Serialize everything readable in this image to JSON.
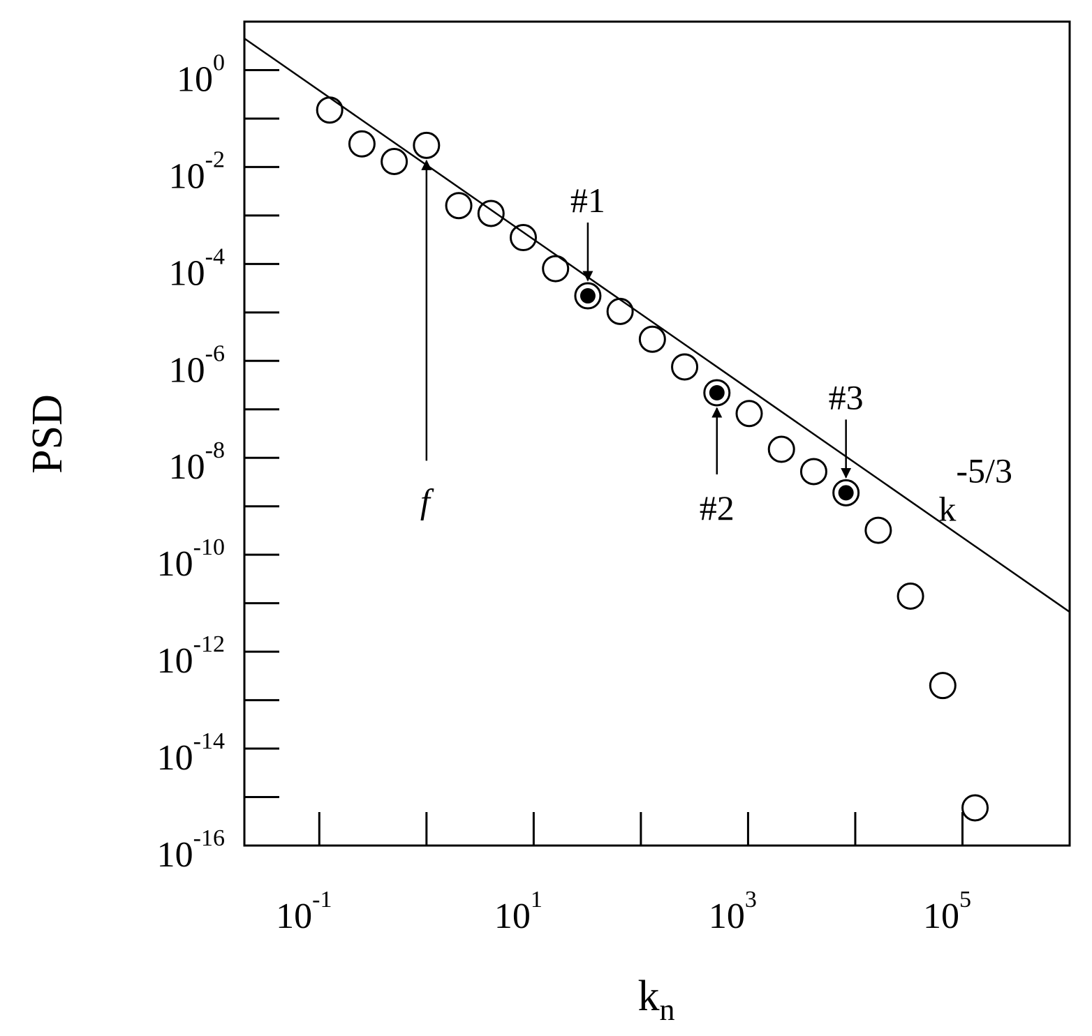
{
  "chart_data": {
    "type": "scatter",
    "title": "",
    "xlabel": {
      "base": "k",
      "subscript": "n"
    },
    "ylabel": "PSD",
    "xscale": "log",
    "yscale": "log",
    "xlim": [
      0.02,
      1000000
    ],
    "ylim": [
      1e-16,
      10.0
    ],
    "grid": false,
    "legend": "none",
    "x_tick_labels": [
      {
        "value": 0.1,
        "base": "10",
        "exp": "-1"
      },
      {
        "value": 10,
        "base": "10",
        "exp": "1"
      },
      {
        "value": 1000,
        "base": "10",
        "exp": "3"
      },
      {
        "value": 100000,
        "base": "10",
        "exp": "5"
      }
    ],
    "x_minor_ticks": [
      0.1,
      1,
      10,
      100,
      1000,
      10000,
      100000
    ],
    "y_tick_labels": [
      {
        "value": 1,
        "base": "10",
        "exp": "0"
      },
      {
        "value": 0.01,
        "base": "10",
        "exp": "-2"
      },
      {
        "value": 0.0001,
        "base": "10",
        "exp": "-4"
      },
      {
        "value": 1e-06,
        "base": "10",
        "exp": "-6"
      },
      {
        "value": 1e-08,
        "base": "10",
        "exp": "-8"
      },
      {
        "value": 1e-10,
        "base": "10",
        "exp": "-10"
      },
      {
        "value": 1e-12,
        "base": "10",
        "exp": "-12"
      },
      {
        "value": 1e-14,
        "base": "10",
        "exp": "-14"
      },
      {
        "value": 1e-16,
        "base": "10",
        "exp": "-16"
      }
    ],
    "y_minor_ticks": [
      1,
      0.1,
      0.01,
      0.001,
      0.0001,
      1e-05,
      1e-06,
      1e-07,
      1e-08,
      1e-09,
      1e-10,
      1e-11,
      1e-12,
      1e-13,
      1e-14,
      1e-15
    ],
    "series": [
      {
        "style": "open-circle",
        "x": [
          0.125,
          0.25,
          0.5,
          1.0,
          2.0,
          4.0,
          8.0,
          16.0,
          32.0,
          64.0,
          128.0,
          256.0,
          512.0,
          1024.0,
          2048.0,
          4096.0,
          8192.0,
          16384.0,
          32768.0,
          65536.0,
          131072.0
        ],
        "y": [
          0.15,
          0.03,
          0.013,
          0.028,
          0.0016,
          0.0011,
          0.00035,
          8e-05,
          2.2e-05,
          1.05e-05,
          2.8e-06,
          7.5e-07,
          2.2e-07,
          8.2e-08,
          1.5e-08,
          5.2e-09,
          1.9e-09,
          3.2e-10,
          1.4e-11,
          2e-13,
          6e-16
        ]
      },
      {
        "style": "filled-dot",
        "x": [
          32.0,
          512.0,
          8192.0
        ],
        "y": [
          2.2e-05,
          2.2e-07,
          1.9e-09
        ]
      },
      {
        "style": "line",
        "x": [
          0.02,
          1000000
        ],
        "y": [
          4.5,
          6.6e-12
        ]
      }
    ],
    "annotations": [
      {
        "text": "#1",
        "x": 32.0,
        "y": 2.2e-05,
        "arrow": "down"
      },
      {
        "text": "#2",
        "x": 512.0,
        "y": 2.2e-07,
        "arrow": "up"
      },
      {
        "text": "#3",
        "x": 8192.0,
        "y": 1.9e-09,
        "arrow": "down"
      },
      {
        "text": "f",
        "x": 1.0,
        "y": 0.028,
        "arrow": "up",
        "italic": true
      },
      {
        "text": "k",
        "exp": "-5/3",
        "x": 60000,
        "y": 5e-10,
        "arrow": "none"
      }
    ]
  }
}
